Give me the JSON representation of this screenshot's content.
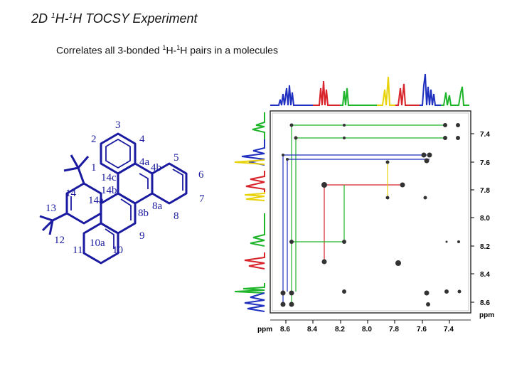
{
  "slide": {
    "title_pre": "2D ",
    "title_sup1": "1",
    "title_mid": "H-",
    "title_sup2": "1",
    "title_post": "H TOCSY Experiment",
    "subtitle_pre": "Correlates all 3-bonded ",
    "subtitle_sup1": "1",
    "subtitle_mid": "H-",
    "subtitle_sup2": "1",
    "subtitle_post": "H pairs in a molecules"
  },
  "molecule": {
    "labels": [
      "3",
      "2",
      "4",
      "4a",
      "5",
      "1",
      "14c",
      "4b",
      "6",
      "14",
      "14b",
      "7",
      "13",
      "14a",
      "8a",
      "8b",
      "8",
      "12",
      "9",
      "11",
      "10a",
      "10"
    ]
  },
  "chart_data": {
    "type": "table",
    "x_axis": {
      "unit": "ppm",
      "ticks": [
        "8.6",
        "8.4",
        "8.2",
        "8.0",
        "7.8",
        "7.6",
        "7.4"
      ]
    },
    "y_axis": {
      "unit": "ppm",
      "ticks": [
        "7.4",
        "7.6",
        "7.8",
        "8.0",
        "8.2",
        "8.4",
        "8.6"
      ]
    },
    "colors": {
      "blue": "#1f2fbf",
      "red": "#d8232a",
      "green": "#1fb52a",
      "yellow": "#e8d20a"
    }
  }
}
